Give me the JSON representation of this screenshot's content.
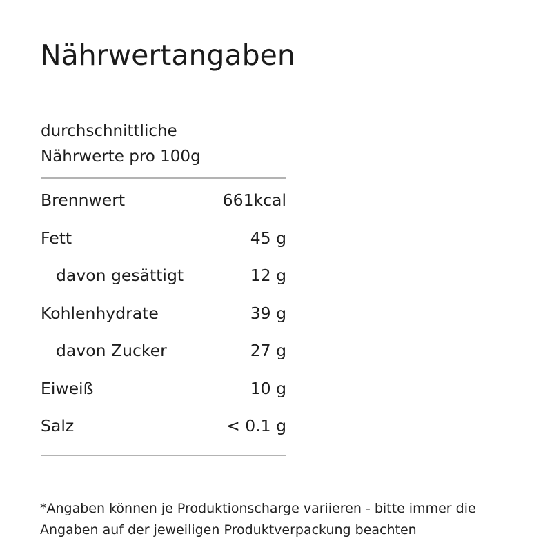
{
  "page": {
    "title": "Nährwertangaben",
    "footnote": "*Angaben können je Produktionscharge variieren - bitte immer die Angaben auf der jeweiligen Produktverpackung beachten"
  },
  "nutrition_table": {
    "header": "durchschnittliche Nährwerte pro 100g",
    "rows": [
      {
        "label": "Brennwert",
        "value": "661kcal",
        "indent": false
      },
      {
        "label": "Fett",
        "value": "45 g",
        "indent": false
      },
      {
        "label": "davon gesättigt",
        "value": "12 g",
        "indent": true
      },
      {
        "label": "Kohlenhydrate",
        "value": "39 g",
        "indent": false
      },
      {
        "label": "davon Zucker",
        "value": "27 g",
        "indent": true
      },
      {
        "label": "Eiweiß",
        "value": "10 g",
        "indent": false
      },
      {
        "label": "Salz",
        "value": "< 0.1 g",
        "indent": false
      }
    ]
  },
  "colors": {
    "text": "#1d1d1d",
    "rule": "#b3b3b3",
    "background": "#ffffff"
  }
}
